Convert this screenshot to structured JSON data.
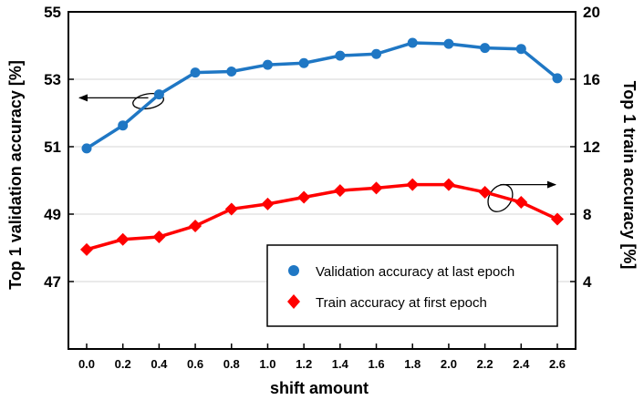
{
  "chart_data": {
    "type": "line",
    "x": [
      0.0,
      0.2,
      0.4,
      0.6,
      0.8,
      1.0,
      1.2,
      1.4,
      1.6,
      1.8,
      2.0,
      2.2,
      2.4,
      2.6
    ],
    "x_tick_labels": [
      "0.0",
      "0.2",
      "0.4",
      "0.6",
      "0.8",
      "1.0",
      "1.2",
      "1.4",
      "1.6",
      "1.8",
      "2.0",
      "2.2",
      "2.4",
      "2.6"
    ],
    "xlabel": "shift amount",
    "ylabel_left": "Top 1 validation accuracy [%]",
    "ylabel_right": "Top 1 train accuracy [%]",
    "ylim_left": [
      45,
      55
    ],
    "ylim_right": [
      0,
      20
    ],
    "yticks_left": [
      47,
      49,
      51,
      53,
      55
    ],
    "yticks_right": [
      4,
      8,
      12,
      16,
      20
    ],
    "legend_position": "lower-right",
    "series": [
      {
        "name": "Validation accuracy at last epoch",
        "axis": "left",
        "color": "#1f77c4",
        "marker": "circle",
        "values": [
          50.95,
          51.63,
          52.55,
          53.2,
          53.23,
          53.43,
          53.48,
          53.7,
          53.75,
          54.08,
          54.05,
          53.93,
          53.9,
          53.03
        ]
      },
      {
        "name": "Train accuracy at first epoch",
        "axis": "right",
        "color": "#ff0000",
        "marker": "diamond",
        "values": [
          5.9,
          6.5,
          6.65,
          7.3,
          8.3,
          8.6,
          9.0,
          9.4,
          9.55,
          9.75,
          9.75,
          9.3,
          8.7,
          7.7
        ]
      }
    ]
  }
}
